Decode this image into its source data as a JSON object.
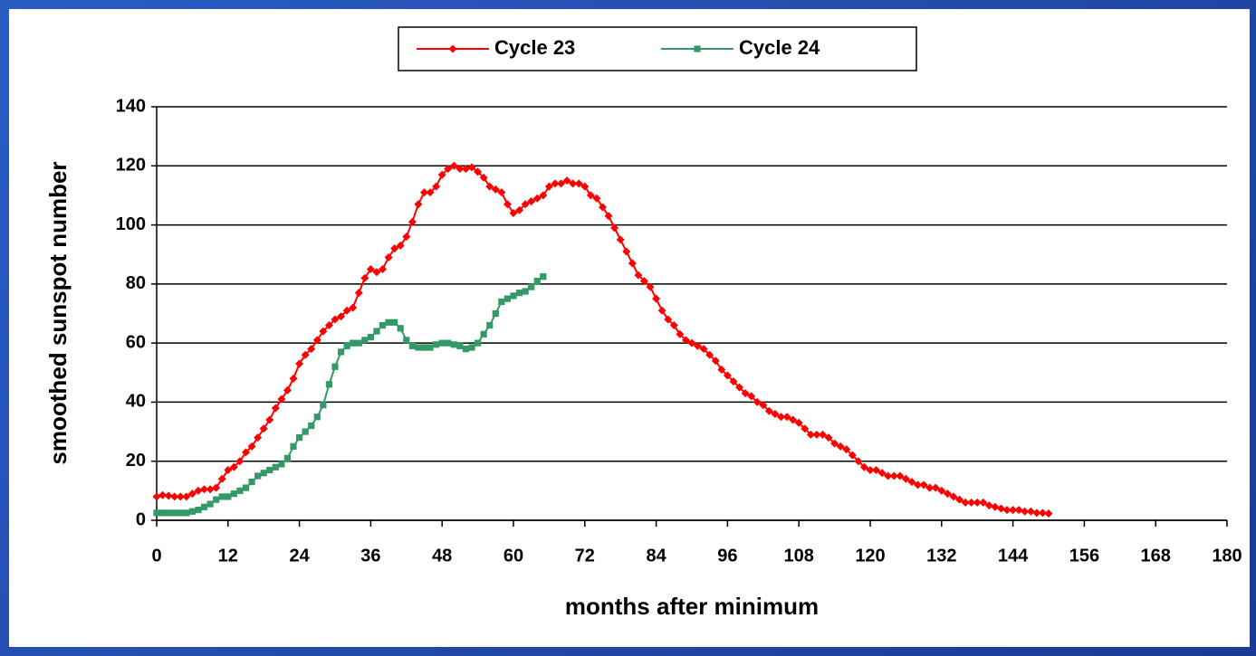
{
  "chart_data": {
    "type": "line",
    "xlabel": "months after minimum",
    "ylabel": "smoothed sunspot number",
    "xlim": [
      0,
      180
    ],
    "xticks": [
      0,
      12,
      24,
      36,
      48,
      60,
      72,
      84,
      96,
      108,
      120,
      132,
      144,
      156,
      168,
      180
    ],
    "ylim": [
      0,
      140
    ],
    "yticks": [
      0,
      20,
      40,
      60,
      80,
      100,
      120,
      140
    ],
    "grid": true,
    "legend": "top",
    "series": [
      {
        "name": "Cycle 23",
        "color": "#ff0000",
        "marker": "diamond",
        "x": [
          0,
          1,
          2,
          3,
          4,
          5,
          6,
          7,
          8,
          9,
          10,
          11,
          12,
          13,
          14,
          15,
          16,
          17,
          18,
          19,
          20,
          21,
          22,
          23,
          24,
          25,
          26,
          27,
          28,
          29,
          30,
          31,
          32,
          33,
          34,
          35,
          36,
          37,
          38,
          39,
          40,
          41,
          42,
          43,
          44,
          45,
          46,
          47,
          48,
          49,
          50,
          51,
          52,
          53,
          54,
          55,
          56,
          57,
          58,
          59,
          60,
          61,
          62,
          63,
          64,
          65,
          66,
          67,
          68,
          69,
          70,
          71,
          72,
          73,
          74,
          75,
          76,
          77,
          78,
          79,
          80,
          81,
          82,
          83,
          84,
          85,
          86,
          87,
          88,
          89,
          90,
          91,
          92,
          93,
          94,
          95,
          96,
          97,
          98,
          99,
          100,
          101,
          102,
          103,
          104,
          105,
          106,
          107,
          108,
          109,
          110,
          111,
          112,
          113,
          114,
          115,
          116,
          117,
          118,
          119,
          120,
          121,
          122,
          123,
          124,
          125,
          126,
          127,
          128,
          129,
          130,
          131,
          132,
          133,
          134,
          135,
          136,
          137,
          138,
          139,
          140,
          141,
          142,
          143,
          144,
          145,
          146,
          147,
          148,
          149,
          150
        ],
        "values": [
          8,
          8.5,
          8.3,
          8,
          8,
          8,
          9,
          10,
          10.5,
          10.5,
          11,
          14,
          17,
          18,
          20,
          23,
          25,
          28,
          31,
          34,
          38,
          41,
          44,
          48,
          53,
          56,
          58,
          61,
          64,
          66,
          68,
          69,
          71,
          72,
          77,
          82,
          85,
          84,
          85,
          89,
          92,
          93,
          96,
          101,
          107,
          111,
          111,
          113,
          117,
          119,
          120,
          119,
          119,
          119.5,
          118,
          116,
          113,
          112,
          111,
          107,
          104,
          105,
          107,
          108,
          109,
          110,
          113,
          114,
          114,
          115,
          114,
          114,
          113,
          110,
          109,
          106,
          103,
          99,
          95,
          91,
          87,
          83,
          81,
          79,
          75,
          71,
          68,
          66,
          63,
          61,
          60,
          59,
          58,
          56,
          54,
          51,
          49,
          47,
          45,
          43,
          42,
          40,
          39,
          37,
          36,
          35,
          35,
          34,
          33,
          31,
          29,
          29,
          29,
          28,
          26,
          25,
          24,
          22,
          20,
          18,
          17,
          17,
          16,
          15,
          15,
          15,
          14,
          13,
          12,
          12,
          11,
          11,
          10,
          9,
          8,
          7,
          6,
          6,
          6,
          6,
          5,
          4.5,
          4,
          3.5,
          3.5,
          3.5,
          3,
          3,
          2.5,
          2.5,
          2.3
        ]
      },
      {
        "name": "Cycle 24",
        "color": "#339966",
        "marker": "square",
        "x": [
          0,
          1,
          2,
          3,
          4,
          5,
          6,
          7,
          8,
          9,
          10,
          11,
          12,
          13,
          14,
          15,
          16,
          17,
          18,
          19,
          20,
          21,
          22,
          23,
          24,
          25,
          26,
          27,
          28,
          29,
          30,
          31,
          32,
          33,
          34,
          35,
          36,
          37,
          38,
          39,
          40,
          41,
          42,
          43,
          44,
          45,
          46,
          47,
          48,
          49,
          50,
          51,
          52,
          53,
          54,
          55,
          56,
          57,
          58,
          59,
          60,
          61,
          62,
          63,
          64,
          65
        ],
        "values": [
          2.5,
          2.5,
          2.5,
          2.5,
          2.5,
          2.5,
          3,
          3.5,
          4.5,
          5.5,
          7,
          8,
          8,
          9,
          10,
          11,
          13,
          15,
          16,
          17,
          18,
          19,
          21,
          25,
          28,
          30,
          32,
          35,
          39,
          46,
          52,
          57,
          59,
          60,
          60,
          61,
          62,
          64,
          66,
          67,
          67,
          65,
          61,
          59,
          58.5,
          58.5,
          58.5,
          59.5,
          60,
          60,
          59.5,
          59,
          58,
          58.5,
          60,
          63,
          66,
          70,
          74,
          75,
          76,
          77,
          77.5,
          79,
          81,
          82.5
        ]
      }
    ]
  }
}
